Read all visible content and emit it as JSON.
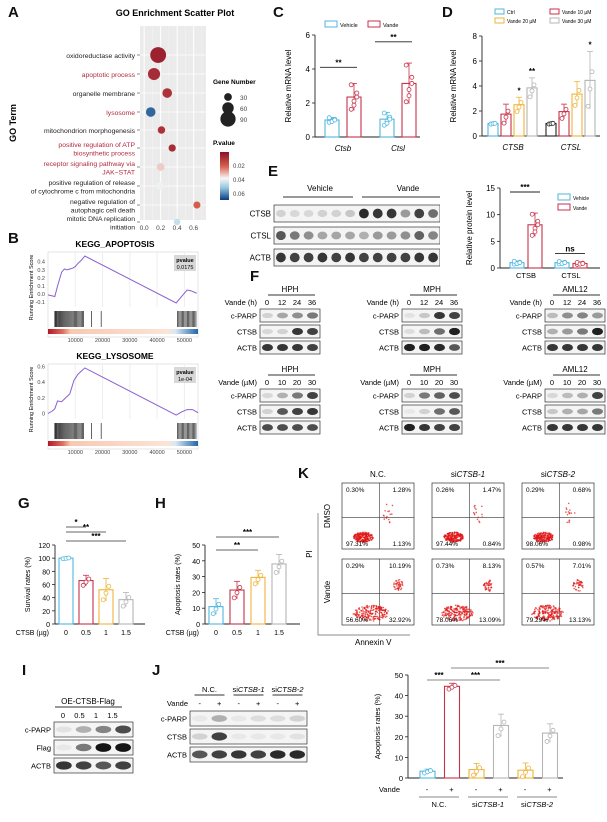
{
  "panels": {
    "A": {
      "label": "A"
    },
    "B": {
      "label": "B"
    },
    "C": {
      "label": "C"
    },
    "D": {
      "label": "D"
    },
    "E": {
      "label": "E"
    },
    "F": {
      "label": "F"
    },
    "G": {
      "label": "G"
    },
    "H": {
      "label": "H"
    },
    "I": {
      "label": "I"
    },
    "J": {
      "label": "J"
    },
    "K": {
      "label": "K"
    }
  },
  "colors": {
    "vehicle": "#4fb6df",
    "vande": "#c8324a",
    "vande20": "#eeb43a",
    "vande30": "#b5b5b5",
    "ctrl_black": "#222222",
    "ctrl": "#4fb6df",
    "gsea_line": "#8a5fd1",
    "sig_red": "#b02a3d",
    "grid_bg": "#ebebeb"
  },
  "chart_data": [
    {
      "panel": "A",
      "type": "scatter",
      "title": "GO Enrichment Scatter Plot",
      "xlabel": "Rich Factor",
      "ylabel": "GO Term",
      "xlim": [
        -0.05,
        0.75
      ],
      "xticks": [
        "0.0",
        "0.2",
        "0.4",
        "0.6"
      ],
      "legend_size_title": "Gene Number",
      "legend_size": [
        30,
        60,
        90
      ],
      "legend_color_title": "P.value",
      "legend_color_ticks": [
        "0.02",
        "0.04",
        "0.06"
      ],
      "terms": [
        {
          "label": "oxidoreductase activity",
          "highlight": false,
          "rich": 0.17,
          "genes": 95,
          "p": 0.005
        },
        {
          "label": "apoptotic process",
          "highlight": true,
          "rich": 0.12,
          "genes": 65,
          "p": 0.008
        },
        {
          "label": "organelle membrane",
          "highlight": false,
          "rich": 0.28,
          "genes": 45,
          "p": 0.01
        },
        {
          "label": "lysosome",
          "highlight": true,
          "rich": 0.08,
          "genes": 45,
          "p": 0.06
        },
        {
          "label": "mitochondrion morphogenesis",
          "highlight": false,
          "rich": 0.21,
          "genes": 28,
          "p": 0.01
        },
        {
          "label": "positive regulation of ATP biosynthetic process",
          "highlight": true,
          "rich": 0.34,
          "genes": 26,
          "p": 0.008
        },
        {
          "label": "receptor signaling pathway via JAK-STAT",
          "highlight": true,
          "rich": 0.2,
          "genes": 30,
          "p": 0.032
        },
        {
          "label": "positive regulation of release of cytochrome c from mitochondria",
          "highlight": false,
          "rich": 0.19,
          "genes": 28,
          "p": 0.037
        },
        {
          "label": "negative regulation of autophagic cell death",
          "highlight": false,
          "rich": 0.64,
          "genes": 25,
          "p": 0.022
        },
        {
          "label": "mitotic DNA replication initiation",
          "highlight": false,
          "rich": 0.4,
          "genes": 20,
          "p": 0.042
        }
      ]
    },
    {
      "panel": "B1",
      "type": "line",
      "title": "KEGG_APOPTOSIS",
      "ylabel": "Running Enrichment Score",
      "pvalue_label": "pvalue",
      "pvalue": "0.0175",
      "yticks": [
        "0.4",
        "0.3",
        "0.2",
        "0.1",
        "0.0",
        "-0.1"
      ],
      "xticks": [
        "10000",
        "20000",
        "30000",
        "40000",
        "50000"
      ],
      "x": [
        0,
        2500,
        3500,
        5000,
        6000,
        7000,
        8000,
        9000,
        10000,
        11000,
        12000,
        13500,
        47000,
        49000,
        51000,
        52500,
        54500
      ],
      "y": [
        -0.01,
        -0.03,
        0.1,
        0.27,
        0.31,
        0.3,
        0.31,
        0.32,
        0.34,
        0.38,
        0.41,
        0.47,
        -0.11,
        -0.03,
        0.05,
        0.04,
        0.01
      ]
    },
    {
      "panel": "B2",
      "type": "line",
      "title": "KEGG_LYSOSOME",
      "ylabel": "Running Enrichment Score",
      "pvalue_label": "pvalue",
      "pvalue": "1e-04",
      "yticks": [
        "0.6",
        "0.4",
        "0.2",
        "0"
      ],
      "xticks": [
        "10000",
        "20000",
        "30000",
        "40000",
        "50000"
      ],
      "x": [
        0,
        1500,
        2500,
        3500,
        5000,
        6500,
        8000,
        9500,
        11000,
        13500,
        47000,
        49000,
        51000,
        53000,
        55000
      ],
      "y": [
        0,
        0.03,
        0.06,
        0.16,
        0.15,
        0.2,
        0.25,
        0.42,
        0.5,
        0.58,
        -0.02,
        0.02,
        0.05,
        0.05,
        0.01
      ]
    },
    {
      "panel": "C",
      "type": "bar",
      "ylabel": "Relative mRNA level",
      "ylim": [
        0,
        6
      ],
      "yticks": [
        "0",
        "2",
        "4",
        "6"
      ],
      "categories": [
        "Ctsb",
        "Ctsl"
      ],
      "series": [
        {
          "name": "Vehicle",
          "values": [
            1.0,
            1.05
          ],
          "sd": [
            0.15,
            0.4
          ]
        },
        {
          "name": "Vande",
          "values": [
            2.35,
            3.15
          ],
          "sd": [
            0.8,
            1.2
          ]
        }
      ],
      "significance": [
        "**",
        "**"
      ]
    },
    {
      "panel": "D",
      "type": "bar",
      "ylabel": "Relative mRNA level",
      "ylim": [
        0,
        8
      ],
      "yticks": [
        "0",
        "2",
        "4",
        "6",
        "8"
      ],
      "categories": [
        "CTSB",
        "CTSL"
      ],
      "series": [
        {
          "name": "Ctrl",
          "values": [
            1.0,
            1.0
          ],
          "sd": [
            0.05,
            0.05
          ]
        },
        {
          "name": "Vande 10 µM",
          "values": [
            1.75,
            1.95
          ],
          "sd": [
            0.8,
            0.6
          ]
        },
        {
          "name": "Vande 20 µM",
          "values": [
            2.5,
            3.35
          ],
          "sd": [
            0.6,
            1.0
          ]
        },
        {
          "name": "Vande 30 µM",
          "values": [
            3.85,
            4.45
          ],
          "sd": [
            0.8,
            2.3
          ]
        }
      ],
      "significance_CTSB": [
        "",
        "",
        "*",
        "**"
      ],
      "significance_CTSL": [
        "",
        "",
        "",
        "*"
      ]
    },
    {
      "panel": "E_bar",
      "type": "bar",
      "ylabel": "Relative protein level",
      "ylim": [
        0,
        15
      ],
      "yticks": [
        "0",
        "5",
        "10",
        "15"
      ],
      "categories": [
        "CTSB",
        "CTSL"
      ],
      "series": [
        {
          "name": "Vehicle",
          "values": [
            1.0,
            1.0
          ],
          "sd": [
            0.3,
            0.25
          ]
        },
        {
          "name": "Vande",
          "values": [
            8.1,
            0.85
          ],
          "sd": [
            2.2,
            0.2
          ]
        }
      ],
      "significance": [
        "***",
        "ns"
      ]
    },
    {
      "panel": "G",
      "type": "bar",
      "ylabel": "Survival rates (%)",
      "xlabel": "CTSB (µg)",
      "ylim": [
        0,
        120
      ],
      "yticks": [
        "0",
        "20",
        "40",
        "60",
        "80",
        "100",
        "120"
      ],
      "categories": [
        "0",
        "0.5",
        "1",
        "1.5"
      ],
      "values": [
        100,
        66,
        52,
        37
      ],
      "sd": [
        1,
        8,
        17,
        11
      ],
      "significance": [
        {
          "from": 0,
          "to": 1,
          "label": "*"
        },
        {
          "from": 0,
          "to": 2,
          "label": "**"
        },
        {
          "from": 0,
          "to": 3,
          "label": "***"
        }
      ]
    },
    {
      "panel": "H",
      "type": "bar",
      "ylabel": "Apoptosis rates (%)",
      "xlabel": "CTSB (µg)",
      "ylim": [
        0,
        50
      ],
      "yticks": [
        "0",
        "10",
        "20",
        "30",
        "40",
        "50"
      ],
      "categories": [
        "0",
        "0.5",
        "1",
        "1.5"
      ],
      "values": [
        11,
        21.5,
        29.5,
        38
      ],
      "sd": [
        5,
        5.5,
        4.5,
        6
      ],
      "significance": [
        {
          "from": 0,
          "to": 2,
          "label": "**"
        },
        {
          "from": 0,
          "to": 3,
          "label": "***"
        }
      ]
    },
    {
      "panel": "K_flow",
      "type": "scatter",
      "xlabel": "Annexin V",
      "ylabel": "PI",
      "columns": [
        "N.C.",
        "siCTSB-1",
        "siCTSB-2"
      ],
      "rows": [
        "DMSO",
        "Vande"
      ],
      "quadrants": {
        "DMSO": [
          [
            "0.30%",
            "1.28%",
            "97.31%",
            "1.13%"
          ],
          [
            "0.26%",
            "1.47%",
            "97.44%",
            "0.84%"
          ],
          [
            "0.29%",
            "0.68%",
            "98.06%",
            "0.98%"
          ]
        ],
        "Vande": [
          [
            "0.29%",
            "10.19%",
            "56.60%",
            "32.92%"
          ],
          [
            "0.73%",
            "8.13%",
            "78.06%",
            "13.09%"
          ],
          [
            "0.57%",
            "7.01%",
            "79.29%",
            "13.13%"
          ]
        ]
      }
    },
    {
      "panel": "K_bar",
      "type": "bar",
      "ylabel": "Apoptosis rates (%)",
      "ylim": [
        0,
        50
      ],
      "yticks": [
        "0",
        "10",
        "20",
        "30",
        "40",
        "50"
      ],
      "categories": [
        "N.C. -",
        "N.C. +",
        "siCTSB-1 -",
        "siCTSB-1 +",
        "siCTSB-2 -",
        "siCTSB-2 +"
      ],
      "values": [
        3.3,
        44.5,
        4.1,
        25.5,
        3.8,
        21.8
      ],
      "sd": [
        1,
        1.5,
        3,
        5.5,
        3.5,
        4.5
      ],
      "significance": [
        {
          "from": 0,
          "to": 1,
          "label": "***"
        },
        {
          "from": 1,
          "to": 3,
          "label": "***"
        },
        {
          "from": 1,
          "to": 5,
          "label": "***"
        }
      ]
    }
  ],
  "blots": {
    "E": {
      "groups": [
        "Vehicle",
        "Vande"
      ],
      "rows": [
        "CTSB",
        "CTSL",
        "ACTB"
      ]
    },
    "F": {
      "time_label": "Vande (h)",
      "time_points": [
        "0",
        "12",
        "24",
        "36"
      ],
      "dose_label": "Vande (µM)",
      "dose_points": [
        "0",
        "10",
        "20",
        "30"
      ],
      "cells": [
        "HPH",
        "MPH",
        "AML12"
      ],
      "rows": [
        "c-PARP",
        "CTSB",
        "ACTB"
      ]
    },
    "I": {
      "title": "OE-CTSB-Flag",
      "doses": [
        "0",
        "0.5",
        "1",
        "1.5"
      ],
      "rows": [
        "c-PARP",
        "Flag",
        "ACTB"
      ]
    },
    "J": {
      "groups": [
        "N.C.",
        "siCTSB-1",
        "siCTSB-2"
      ],
      "vande_label": "Vande",
      "signs": [
        "-",
        "+",
        "-",
        "+",
        "-",
        "+"
      ],
      "rows": [
        "c-PARP",
        "CTSB",
        "ACTB"
      ]
    }
  },
  "axis_labels": {
    "vande": "Vande",
    "k_groups": [
      "N.C.",
      "siCTSB-1",
      "siCTSB-2"
    ]
  }
}
